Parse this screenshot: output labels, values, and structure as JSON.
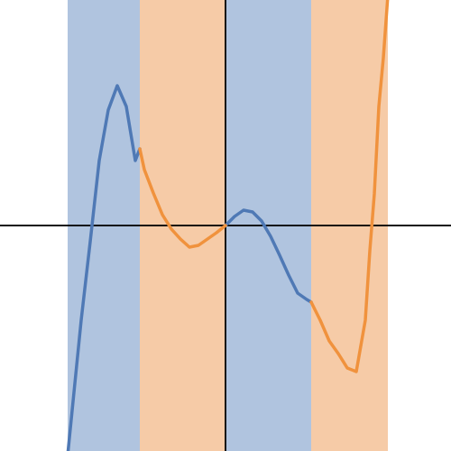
{
  "chart_data": {
    "type": "area",
    "title": "",
    "xlabel": "",
    "ylabel": "",
    "xlim": [
      -2.5,
      2.5
    ],
    "ylim": [
      -2.5,
      2.5
    ],
    "grid": false,
    "legend": "none",
    "axes": {
      "x_axis_at_y": 0,
      "y_axis_at_x": 0
    },
    "series": [
      {
        "id": "blue-segments",
        "color": "#4f79b5",
        "fill": "#b0c4df",
        "x": [
          -1.75,
          -1.6,
          -1.5,
          -1.4,
          -1.3,
          -1.2,
          -1.1,
          -1.0,
          -0.95,
          0.0,
          0.1,
          0.2,
          0.3,
          0.4,
          0.5,
          0.6,
          0.7,
          0.8,
          0.9,
          0.95
        ],
        "y": [
          -2.55,
          -1.05,
          -0.18,
          0.72,
          1.28,
          1.55,
          1.32,
          0.72,
          0.85,
          0.0,
          0.1,
          0.17,
          0.15,
          0.05,
          -0.12,
          -0.33,
          -0.55,
          -0.75,
          -0.82,
          -0.85
        ]
      },
      {
        "id": "orange-segments",
        "color": "#f0923d",
        "fill": "#f6cba7",
        "x": [
          -0.95,
          -0.9,
          -0.8,
          -0.7,
          -0.6,
          -0.5,
          -0.4,
          -0.3,
          -0.2,
          -0.1,
          0.0,
          0.95,
          1.05,
          1.15,
          1.25,
          1.35,
          1.45,
          1.55,
          1.6,
          1.65,
          1.7,
          1.75,
          1.8
        ],
        "y": [
          0.85,
          0.62,
          0.36,
          0.12,
          -0.04,
          -0.15,
          -0.24,
          -0.22,
          -0.15,
          -0.08,
          0.0,
          -0.85,
          -1.05,
          -1.28,
          -1.42,
          -1.58,
          -1.62,
          -1.05,
          -0.28,
          0.35,
          1.32,
          1.86,
          2.55
        ]
      }
    ]
  }
}
